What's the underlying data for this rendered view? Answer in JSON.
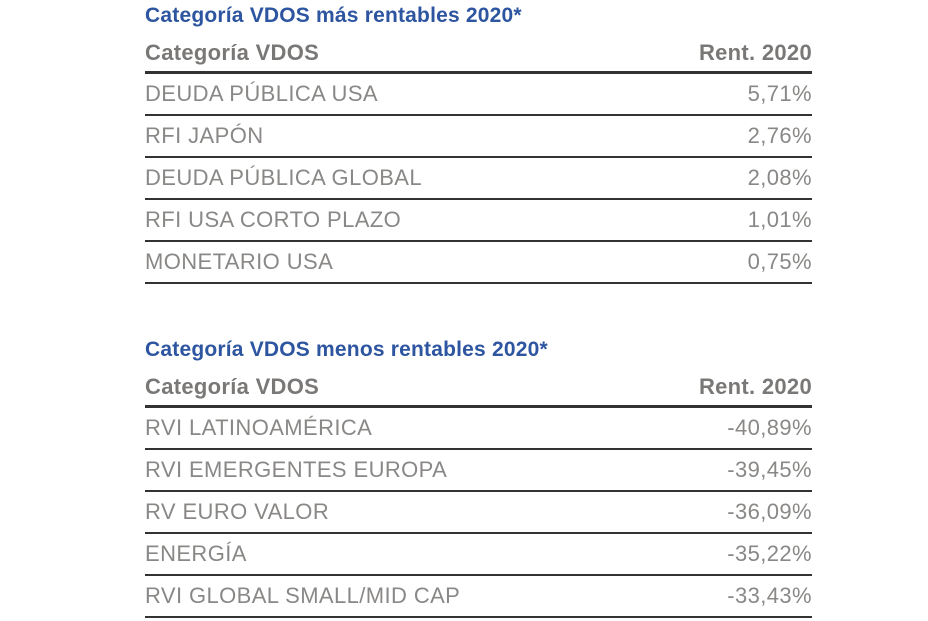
{
  "colors": {
    "title_blue": "#2D55A0",
    "header_gray": "#7A7876",
    "row_gray": "#8A8886",
    "line_dark": "#333333",
    "background": "#FFFFFF"
  },
  "chart_data": [
    {
      "type": "table",
      "title": "Categoría VDOS más rentables 2020*",
      "columns": [
        "Categoría VDOS",
        "Rent. 2020"
      ],
      "rows": [
        [
          "DEUDA PÚBLICA USA",
          "5,71%"
        ],
        [
          "RFI JAPÓN",
          "2,76%"
        ],
        [
          "DEUDA PÚBLICA GLOBAL",
          "2,08%"
        ],
        [
          "RFI USA CORTO PLAZO",
          "1,01%"
        ],
        [
          "MONETARIO USA",
          "0,75%"
        ]
      ],
      "values_numeric": [
        5.71,
        2.76,
        2.08,
        1.01,
        0.75
      ],
      "value_unit": "%"
    },
    {
      "type": "table",
      "title": "Categoría VDOS menos rentables 2020*",
      "columns": [
        "Categoría VDOS",
        "Rent. 2020"
      ],
      "rows": [
        [
          "RVI LATINOAMÉRICA",
          "-40,89%"
        ],
        [
          "RVI EMERGENTES EUROPA",
          "-39,45%"
        ],
        [
          "RV EURO VALOR",
          "-36,09%"
        ],
        [
          "ENERGÍA",
          "-35,22%"
        ],
        [
          "RVI GLOBAL SMALL/MID CAP",
          "-33,43%"
        ]
      ],
      "values_numeric": [
        -40.89,
        -39.45,
        -36.09,
        -35.22,
        -33.43
      ],
      "value_unit": "%"
    }
  ]
}
